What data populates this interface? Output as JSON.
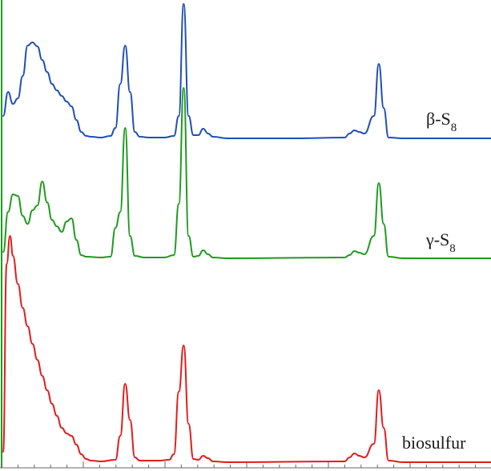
{
  "chart_data": {
    "type": "line",
    "title": "",
    "xlabel": "",
    "ylabel": "",
    "grid": false,
    "legend": "inline-right",
    "x_range": [
      0,
      100
    ],
    "series": [
      {
        "name": "β-S8",
        "label_main": "β-S",
        "label_sub": "8",
        "color": "#1f4fb5",
        "offset": 175,
        "scale": 1.0,
        "baseline": 0,
        "points": [
          [
            0,
            30
          ],
          [
            1,
            60
          ],
          [
            2,
            45
          ],
          [
            3,
            52
          ],
          [
            4,
            80
          ],
          [
            5,
            118
          ],
          [
            6,
            122
          ],
          [
            7,
            117
          ],
          [
            8,
            100
          ],
          [
            9,
            85
          ],
          [
            10,
            70
          ],
          [
            11,
            62
          ],
          [
            12,
            55
          ],
          [
            13,
            48
          ],
          [
            14,
            42
          ],
          [
            15,
            25
          ],
          [
            16,
            10
          ],
          [
            17,
            5
          ],
          [
            18,
            4
          ],
          [
            20,
            3
          ],
          [
            22,
            5
          ],
          [
            23,
            15
          ],
          [
            24,
            70
          ],
          [
            25,
            118
          ],
          [
            26,
            60
          ],
          [
            27,
            10
          ],
          [
            28,
            4
          ],
          [
            30,
            3
          ],
          [
            33,
            3
          ],
          [
            35,
            5
          ],
          [
            36,
            30
          ],
          [
            37,
            170
          ],
          [
            38,
            30
          ],
          [
            39,
            6
          ],
          [
            40,
            6
          ],
          [
            41,
            14
          ],
          [
            42,
            8
          ],
          [
            43,
            4
          ],
          [
            46,
            2
          ],
          [
            60,
            2
          ],
          [
            70,
            3
          ],
          [
            71,
            8
          ],
          [
            72,
            12
          ],
          [
            73,
            10
          ],
          [
            74,
            8
          ],
          [
            76,
            30
          ],
          [
            77,
            95
          ],
          [
            78,
            40
          ],
          [
            79,
            3
          ],
          [
            82,
            2
          ],
          [
            100,
            2
          ]
        ]
      },
      {
        "name": "γ-S8",
        "label_main": "γ-S",
        "label_sub": "8",
        "color": "#1e9b1e",
        "offset": 325,
        "scale": 1.0,
        "baseline": 0,
        "points": [
          [
            0,
            10
          ],
          [
            1,
            60
          ],
          [
            2,
            82
          ],
          [
            3,
            80
          ],
          [
            4,
            55
          ],
          [
            5,
            45
          ],
          [
            6,
            62
          ],
          [
            7,
            68
          ],
          [
            8,
            98
          ],
          [
            9,
            72
          ],
          [
            10,
            50
          ],
          [
            11,
            42
          ],
          [
            12,
            35
          ],
          [
            13,
            48
          ],
          [
            14,
            52
          ],
          [
            15,
            25
          ],
          [
            16,
            6
          ],
          [
            17,
            4
          ],
          [
            20,
            3
          ],
          [
            22,
            4
          ],
          [
            23,
            40
          ],
          [
            24,
            60
          ],
          [
            25,
            165
          ],
          [
            26,
            30
          ],
          [
            27,
            5
          ],
          [
            29,
            3
          ],
          [
            33,
            3
          ],
          [
            35,
            6
          ],
          [
            36,
            70
          ],
          [
            37,
            215
          ],
          [
            38,
            30
          ],
          [
            39,
            4
          ],
          [
            40,
            5
          ],
          [
            41,
            12
          ],
          [
            42,
            7
          ],
          [
            43,
            3
          ],
          [
            46,
            2
          ],
          [
            70,
            3
          ],
          [
            71,
            6
          ],
          [
            72,
            11
          ],
          [
            73,
            9
          ],
          [
            74,
            7
          ],
          [
            76,
            30
          ],
          [
            77,
            96
          ],
          [
            78,
            45
          ],
          [
            79,
            4
          ],
          [
            82,
            2
          ],
          [
            100,
            2
          ]
        ]
      },
      {
        "name": "biosulfur",
        "label_main": "biosulfur",
        "label_sub": "",
        "color": "#e21b1b",
        "offset": 580,
        "scale": 1.0,
        "baseline": 0,
        "points": [
          [
            0,
            15
          ],
          [
            0.7,
            250
          ],
          [
            1.4,
            285
          ],
          [
            2,
            260
          ],
          [
            3,
            225
          ],
          [
            4,
            195
          ],
          [
            5,
            172
          ],
          [
            6,
            150
          ],
          [
            7,
            130
          ],
          [
            8,
            110
          ],
          [
            9,
            92
          ],
          [
            10,
            75
          ],
          [
            11,
            60
          ],
          [
            12,
            45
          ],
          [
            13,
            38
          ],
          [
            14,
            35
          ],
          [
            15,
            24
          ],
          [
            16,
            12
          ],
          [
            17,
            6
          ],
          [
            18,
            4
          ],
          [
            20,
            3
          ],
          [
            23,
            5
          ],
          [
            24,
            35
          ],
          [
            25,
            100
          ],
          [
            26,
            55
          ],
          [
            27,
            8
          ],
          [
            28,
            4
          ],
          [
            32,
            4
          ],
          [
            34,
            5
          ],
          [
            35,
            12
          ],
          [
            36,
            90
          ],
          [
            37,
            148
          ],
          [
            38,
            50
          ],
          [
            39,
            6
          ],
          [
            40,
            5
          ],
          [
            41,
            10
          ],
          [
            42,
            7
          ],
          [
            43,
            3
          ],
          [
            46,
            2
          ],
          [
            70,
            3
          ],
          [
            71,
            8
          ],
          [
            72,
            13
          ],
          [
            73,
            10
          ],
          [
            74,
            8
          ],
          [
            76,
            25
          ],
          [
            77,
            92
          ],
          [
            78,
            45
          ],
          [
            79,
            4
          ],
          [
            82,
            2
          ],
          [
            100,
            2
          ]
        ]
      }
    ]
  }
}
